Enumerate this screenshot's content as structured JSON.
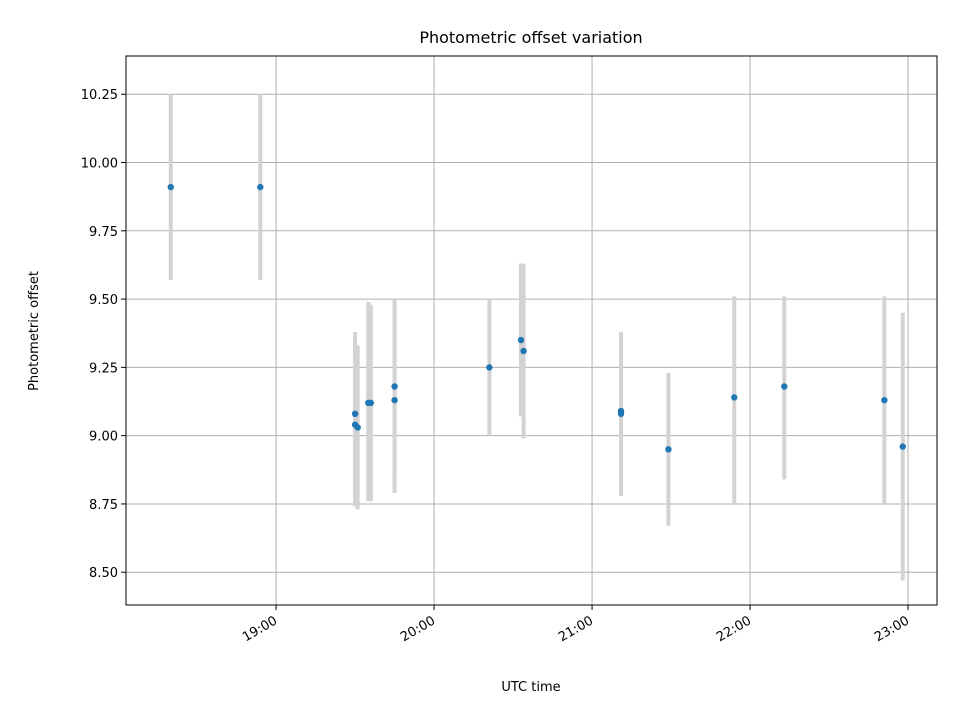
{
  "chart_data": {
    "type": "scatter",
    "title": "Photometric offset variation",
    "xlabel": "UTC time",
    "ylabel": "Photometric offset",
    "x_ticks": [
      "19:00",
      "20:00",
      "21:00",
      "22:00",
      "23:00"
    ],
    "y_ticks": [
      "8.50",
      "8.75",
      "9.00",
      "9.25",
      "9.50",
      "9.75",
      "10.00",
      "10.25"
    ],
    "xlim": [
      "18:03",
      "23:11"
    ],
    "ylim": [
      8.38,
      10.39
    ],
    "grid": true,
    "colors": {
      "marker": "#1f77b4",
      "errorbar": "#d3d3d3",
      "grid": "#b0b0b0"
    },
    "series": [
      {
        "points": [
          {
            "x": "18:20",
            "y": 9.91,
            "ymin": 9.57,
            "ymax": 10.25
          },
          {
            "x": "18:54",
            "y": 9.91,
            "ymin": 9.57,
            "ymax": 10.25
          },
          {
            "x": "19:30",
            "y": 9.08,
            "ymin": 8.78,
            "ymax": 9.38
          },
          {
            "x": "19:30",
            "y": 9.04,
            "ymin": 8.74,
            "ymax": 9.34
          },
          {
            "x": "19:31",
            "y": 9.03,
            "ymin": 8.73,
            "ymax": 9.33
          },
          {
            "x": "19:35",
            "y": 9.12,
            "ymin": 8.76,
            "ymax": 9.49
          },
          {
            "x": "19:36",
            "y": 9.12,
            "ymin": 8.76,
            "ymax": 9.48
          },
          {
            "x": "19:45",
            "y": 9.18,
            "ymin": 8.86,
            "ymax": 9.5
          },
          {
            "x": "19:45",
            "y": 9.13,
            "ymin": 8.79,
            "ymax": 9.47
          },
          {
            "x": "20:21",
            "y": 9.25,
            "ymin": 9.0,
            "ymax": 9.5
          },
          {
            "x": "20:33",
            "y": 9.35,
            "ymin": 9.07,
            "ymax": 9.63
          },
          {
            "x": "20:34",
            "y": 9.31,
            "ymin": 8.99,
            "ymax": 9.63
          },
          {
            "x": "21:11",
            "y": 9.09,
            "ymin": 8.78,
            "ymax": 9.38
          },
          {
            "x": "21:11",
            "y": 9.08,
            "ymin": 8.78,
            "ymax": 9.38
          },
          {
            "x": "21:29",
            "y": 8.95,
            "ymin": 8.67,
            "ymax": 9.23
          },
          {
            "x": "21:54",
            "y": 9.14,
            "ymin": 8.75,
            "ymax": 9.51
          },
          {
            "x": "22:13",
            "y": 9.18,
            "ymin": 8.84,
            "ymax": 9.51
          },
          {
            "x": "22:51",
            "y": 9.13,
            "ymin": 8.75,
            "ymax": 9.51
          },
          {
            "x": "22:58",
            "y": 8.96,
            "ymin": 8.47,
            "ymax": 9.45
          }
        ]
      }
    ]
  }
}
